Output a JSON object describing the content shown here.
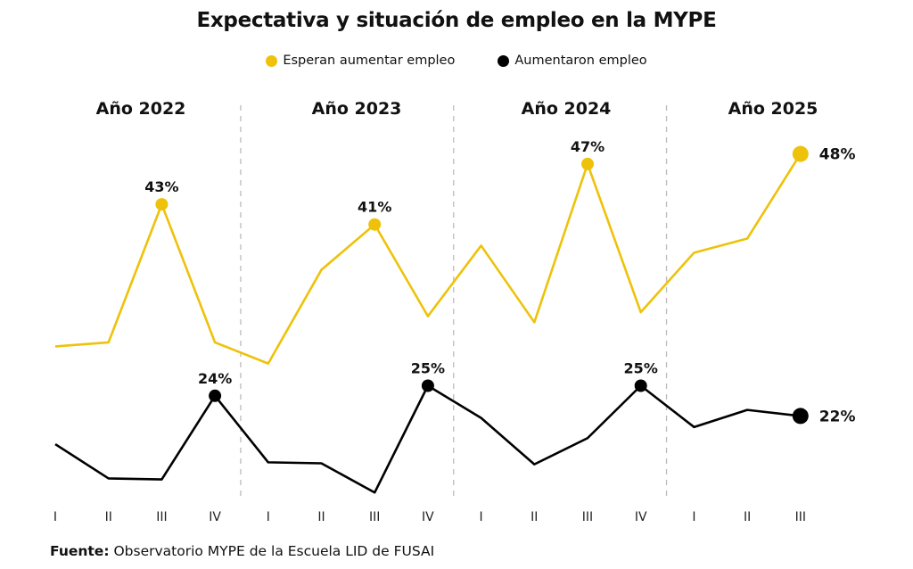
{
  "chart_data": {
    "type": "line",
    "title": "Expectativa y situación de empleo en la MYPE",
    "groups": [
      "Año 2022",
      "Año 2023",
      "Año 2024",
      "Año 2025"
    ],
    "categories": [
      "I",
      "II",
      "III",
      "IV",
      "I",
      "II",
      "III",
      "IV",
      "I",
      "II",
      "III",
      "IV",
      "I",
      "II",
      "III"
    ],
    "series": [
      {
        "name": "Esperan aumentar empleo",
        "color": "#EEC20A",
        "values": [
          28.9,
          29.3,
          43,
          29.3,
          27.2,
          36.5,
          41,
          31.9,
          38.9,
          31.3,
          47,
          32.3,
          38.2,
          39.6,
          48
        ],
        "labeled": {
          "2": "43%",
          "6": "41%",
          "10": "47%",
          "14": "48%"
        }
      },
      {
        "name": "Aumentaron empleo",
        "color": "#000000",
        "values": [
          19.2,
          15.8,
          15.7,
          24,
          17.4,
          17.3,
          14.4,
          25,
          21.8,
          17.2,
          19.8,
          25,
          20.9,
          22.6,
          22
        ],
        "labeled": {
          "3": "24%",
          "7": "25%",
          "11": "25%",
          "14": "22%"
        }
      }
    ],
    "grid": false,
    "legend": "top-center",
    "year_dividers": true
  },
  "source": {
    "label": "Fuente:",
    "text": " Observatorio MYPE de la Escuela LID de FUSAI"
  }
}
